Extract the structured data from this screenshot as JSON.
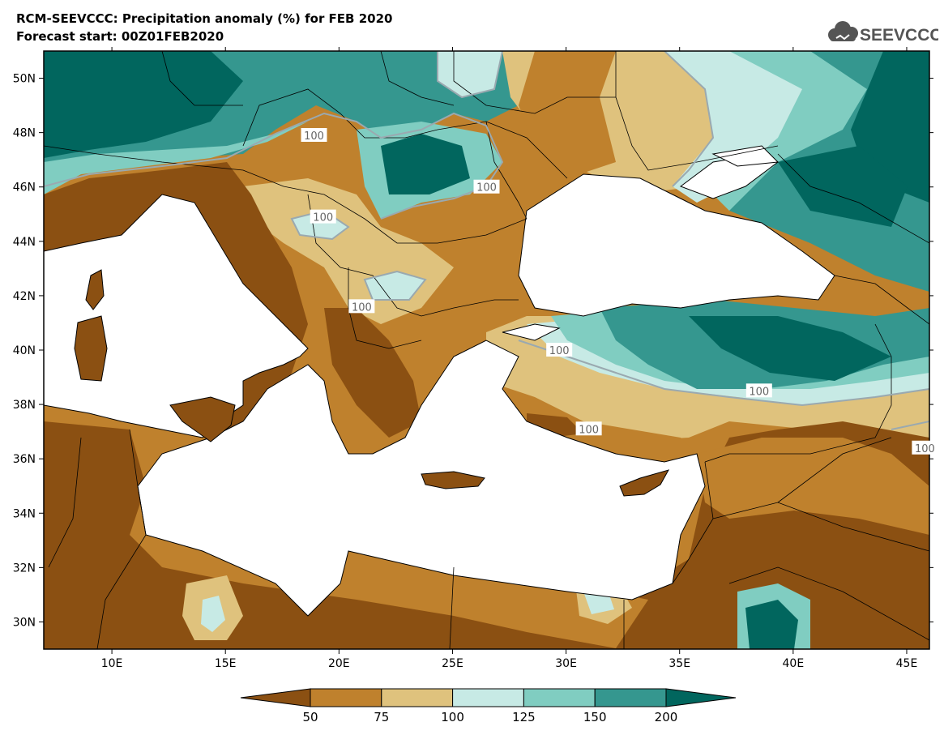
{
  "title": {
    "line1": "RCM-SEEVCCC: Precipitation anomaly (%) for FEB 2020",
    "line2": "Forecast start: 00Z01FEB2020"
  },
  "logo": {
    "text": "SEEVCCC",
    "icon": "cloud-icon"
  },
  "map": {
    "lon_range": [
      7,
      46
    ],
    "lat_range": [
      29,
      51
    ],
    "lon_ticks": [
      {
        "value": 10,
        "label": "10E"
      },
      {
        "value": 15,
        "label": "15E"
      },
      {
        "value": 20,
        "label": "20E"
      },
      {
        "value": 25,
        "label": "25E"
      },
      {
        "value": 30,
        "label": "30E"
      },
      {
        "value": 35,
        "label": "35E"
      },
      {
        "value": 40,
        "label": "40E"
      },
      {
        "value": 45,
        "label": "45E"
      }
    ],
    "lat_ticks": [
      {
        "value": 30,
        "label": "30N"
      },
      {
        "value": 32,
        "label": "32N"
      },
      {
        "value": 34,
        "label": "34N"
      },
      {
        "value": 36,
        "label": "36N"
      },
      {
        "value": 38,
        "label": "38N"
      },
      {
        "value": 40,
        "label": "40N"
      },
      {
        "value": 42,
        "label": "42N"
      },
      {
        "value": 44,
        "label": "44N"
      },
      {
        "value": 46,
        "label": "46N"
      },
      {
        "value": 48,
        "label": "48N"
      },
      {
        "value": 50,
        "label": "50N"
      }
    ],
    "contour_labels": [
      {
        "text": "100",
        "lon": 18.9,
        "lat": 47.9
      },
      {
        "text": "100",
        "lon": 26.5,
        "lat": 46.0
      },
      {
        "text": "100",
        "lon": 19.3,
        "lat": 44.9
      },
      {
        "text": "100",
        "lon": 21.0,
        "lat": 41.6
      },
      {
        "text": "100",
        "lon": 29.7,
        "lat": 40.0
      },
      {
        "text": "100",
        "lon": 38.5,
        "lat": 38.5
      },
      {
        "text": "100",
        "lon": 31.0,
        "lat": 37.1
      },
      {
        "text": "100",
        "lon": 45.8,
        "lat": 36.4
      }
    ],
    "colors": {
      "below_50": "#8b5012",
      "50_75": "#bf812d",
      "75_100": "#dfc27d",
      "100_125": "#c7eae5",
      "125_150": "#80cdc1",
      "150_200": "#35978f",
      "above_200": "#01665e",
      "sea": "#ffffff"
    }
  },
  "colorbar": {
    "labels": [
      "50",
      "75",
      "100",
      "125",
      "150",
      "200"
    ],
    "colors": [
      "#8b5012",
      "#bf812d",
      "#dfc27d",
      "#c7eae5",
      "#80cdc1",
      "#35978f",
      "#01665e"
    ]
  }
}
